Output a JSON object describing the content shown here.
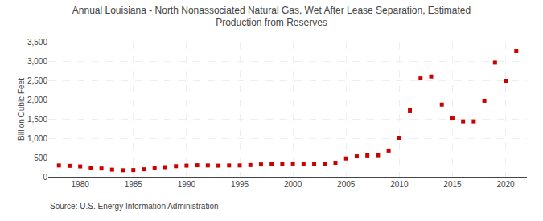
{
  "chart_data": {
    "type": "scatter",
    "title": "Annual Louisiana - North Nonassociated Natural Gas, Wet After Lease Separation, Estimated\nProduction from Reserves",
    "ylabel": "Billion Cubic Feet",
    "annotations": [
      "Source: U.S. Energy Information Administration"
    ],
    "x": [
      1978,
      1979,
      1980,
      1981,
      1982,
      1983,
      1984,
      1985,
      1986,
      1987,
      1988,
      1989,
      1990,
      1991,
      1992,
      1993,
      1994,
      1995,
      1996,
      1997,
      1998,
      1999,
      2000,
      2001,
      2002,
      2003,
      2004,
      2005,
      2006,
      2007,
      2008,
      2009,
      2010,
      2011,
      2012,
      2013,
      2014,
      2015,
      2016,
      2017,
      2018,
      2019,
      2020,
      2021
    ],
    "values": [
      295,
      285,
      270,
      240,
      215,
      185,
      170,
      175,
      195,
      220,
      250,
      275,
      290,
      300,
      295,
      290,
      295,
      295,
      305,
      320,
      330,
      335,
      345,
      335,
      325,
      340,
      365,
      475,
      530,
      555,
      560,
      680,
      1010,
      1720,
      2550,
      2600,
      1870,
      1530,
      1435,
      1435,
      1970,
      2960,
      2490,
      3260
    ],
    "color": "#cc0000",
    "marker": "square",
    "xlim": [
      1977,
      2022
    ],
    "xticks": [
      1980,
      1985,
      1990,
      1995,
      2000,
      2005,
      2010,
      2015,
      2020
    ],
    "ylim": [
      0,
      3500
    ],
    "yticks": [
      0,
      500,
      {
        "value": 1000,
        "label": "1,000"
      },
      {
        "value": 1500,
        "label": "1,500"
      },
      {
        "value": 2000,
        "label": "2,000"
      },
      {
        "value": 2500,
        "label": "2,500"
      },
      {
        "value": 3000,
        "label": "3,000"
      },
      {
        "value": 3500,
        "label": "3,500"
      }
    ],
    "grid": true
  }
}
